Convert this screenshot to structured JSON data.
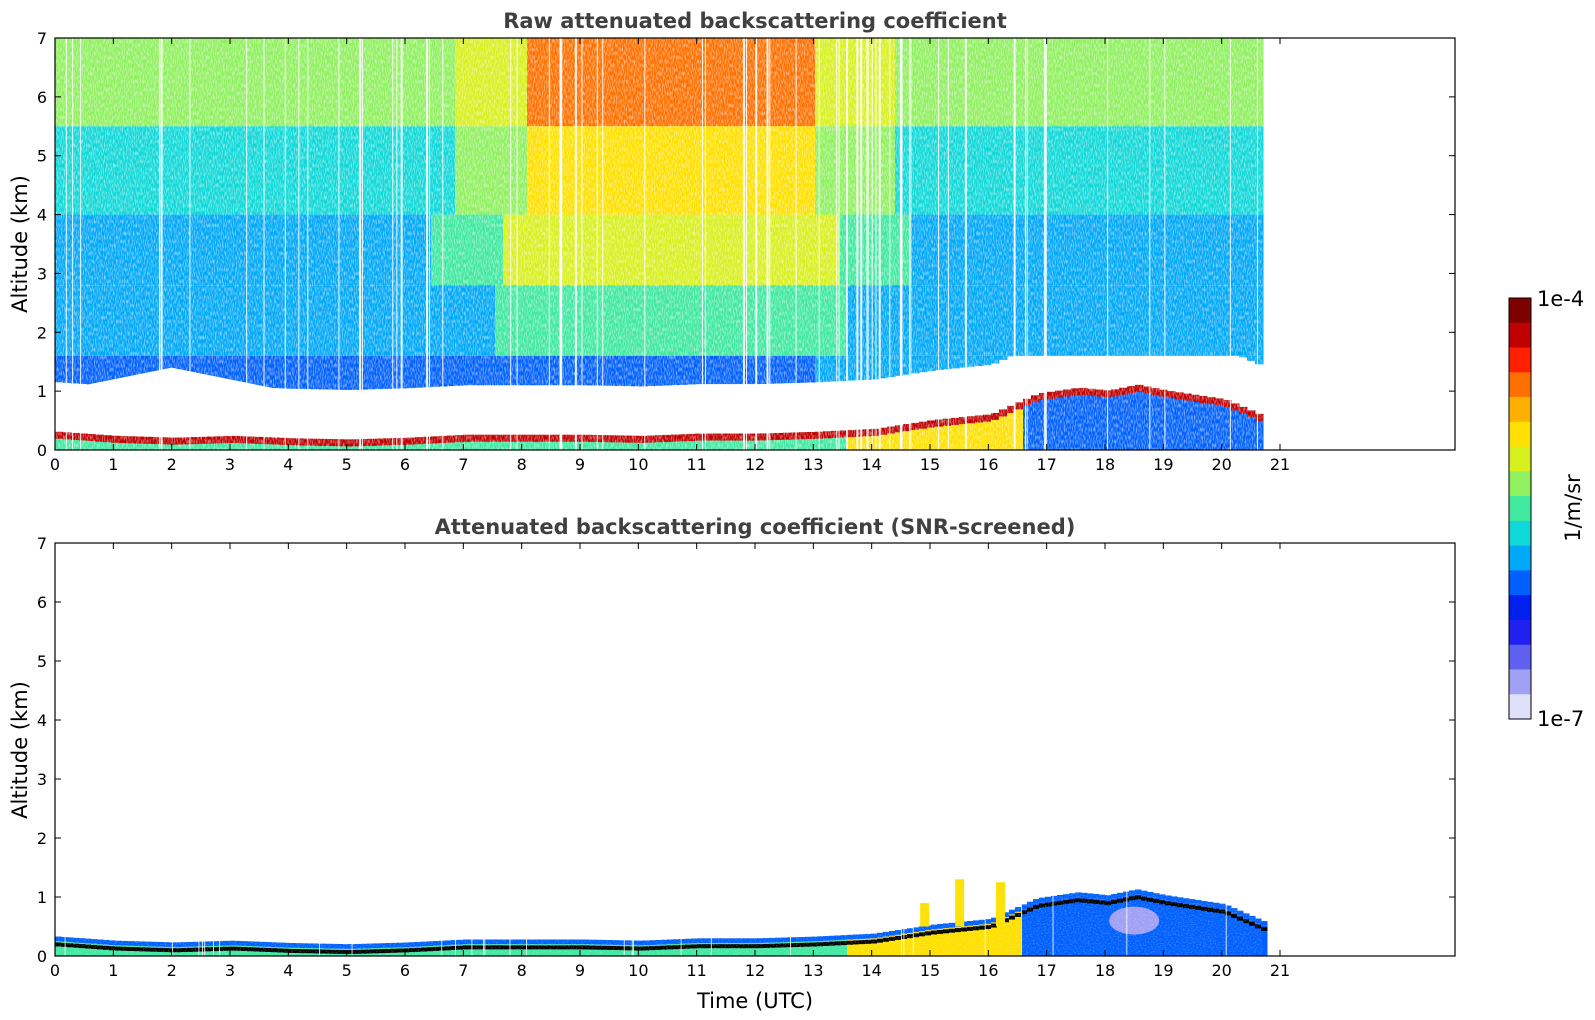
{
  "chart_data": [
    {
      "type": "heatmap",
      "title": "Raw attenuated backscattering coefficient",
      "xlabel": "",
      "ylabel": "Altitude (km)",
      "xlim": [
        0,
        24
      ],
      "ylim": [
        0,
        7
      ],
      "x_ticks": [
        0,
        1,
        2,
        3,
        4,
        5,
        6,
        7,
        8,
        9,
        10,
        11,
        12,
        13,
        14,
        15,
        16,
        17,
        18,
        19,
        20,
        21
      ],
      "y_ticks": [
        0,
        1,
        2,
        3,
        4,
        5,
        6,
        7
      ],
      "data_end_time": 20.7,
      "layer_height_km": [
        [
          0,
          0.25
        ],
        [
          1,
          0.18
        ],
        [
          2,
          0.15
        ],
        [
          3,
          0.18
        ],
        [
          4,
          0.14
        ],
        [
          5,
          0.12
        ],
        [
          6,
          0.15
        ],
        [
          7,
          0.2
        ],
        [
          8,
          0.2
        ],
        [
          9,
          0.2
        ],
        [
          10,
          0.18
        ],
        [
          11,
          0.22
        ],
        [
          12,
          0.22
        ],
        [
          13,
          0.25
        ],
        [
          14,
          0.3
        ],
        [
          15,
          0.45
        ],
        [
          16,
          0.55
        ],
        [
          16.8,
          0.9
        ],
        [
          17.5,
          1.0
        ],
        [
          18,
          0.95
        ],
        [
          18.5,
          1.05
        ],
        [
          19,
          0.95
        ],
        [
          20,
          0.8
        ],
        [
          20.7,
          0.5
        ]
      ]
    },
    {
      "type": "heatmap",
      "title": "Attenuated backscattering coefficient (SNR-screened)",
      "xlabel": "Time (UTC)",
      "ylabel": "Altitude (km)",
      "xlim": [
        0,
        24
      ],
      "ylim": [
        0,
        7
      ],
      "x_ticks": [
        0,
        1,
        2,
        3,
        4,
        5,
        6,
        7,
        8,
        9,
        10,
        11,
        12,
        13,
        14,
        15,
        16,
        17,
        18,
        19,
        20,
        21
      ],
      "y_ticks": [
        0,
        1,
        2,
        3,
        4,
        5,
        6,
        7
      ],
      "data_end_time": 20.7
    }
  ],
  "colorbar": {
    "max_label": "1e-4",
    "min_label": "1e-7",
    "unit": "1/m/sr",
    "colors": [
      "#7f0000",
      "#c00000",
      "#ff2000",
      "#ff7000",
      "#ffb000",
      "#ffe000",
      "#d8f020",
      "#90f060",
      "#40e8a0",
      "#10d8d8",
      "#00a8f8",
      "#0060ff",
      "#0020f0",
      "#2020f0",
      "#6060f0",
      "#a0a0f4",
      "#e0e0fa"
    ]
  }
}
